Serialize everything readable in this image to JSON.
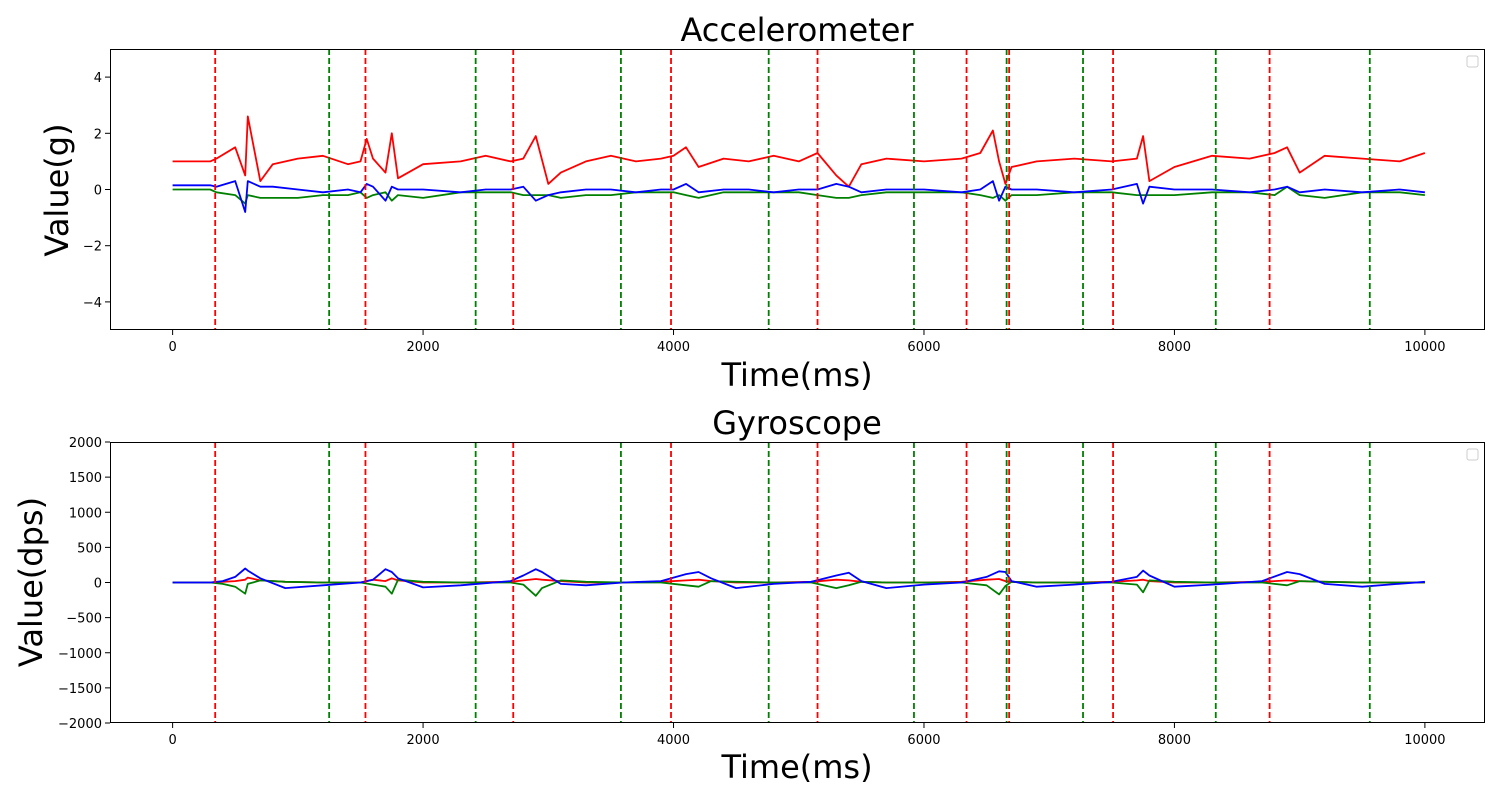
{
  "colors": {
    "x_series": "#ff0000",
    "y_series": "#008000",
    "z_series": "#0000ff",
    "start_marker": "#ff0000",
    "end_marker": "#008000"
  },
  "chart_data": [
    {
      "type": "line",
      "title": "Accelerometer",
      "xlabel": "Time(ms)",
      "ylabel": "Value(g)",
      "xlim": [
        -500,
        10480
      ],
      "ylim": [
        -5,
        5
      ],
      "xticks": [
        0,
        2000,
        4000,
        6000,
        8000,
        10000
      ],
      "xtick_labels": [
        "0",
        "2000",
        "4000",
        "6000",
        "8000",
        "10000"
      ],
      "yticks": [
        -4,
        -2,
        0,
        2,
        4
      ],
      "ytick_labels": [
        "−4",
        "−2",
        "0",
        "2",
        "4"
      ],
      "legend": "top-right (empty)",
      "grid": false,
      "start_markers": [
        340,
        1540,
        2720,
        3980,
        5150,
        6340,
        6680,
        7510,
        8760
      ],
      "end_markers": [
        1250,
        2420,
        3580,
        4760,
        5920,
        6660,
        7270,
        8330,
        9560
      ],
      "x": [
        0,
        300,
        350,
        500,
        580,
        600,
        700,
        800,
        1000,
        1200,
        1400,
        1500,
        1550,
        1600,
        1700,
        1750,
        1800,
        2000,
        2300,
        2500,
        2700,
        2800,
        2900,
        3000,
        3100,
        3300,
        3500,
        3700,
        3900,
        4000,
        4100,
        4200,
        4400,
        4600,
        4800,
        5000,
        5150,
        5300,
        5400,
        5500,
        5700,
        6000,
        6300,
        6450,
        6550,
        6600,
        6650,
        6700,
        6900,
        7200,
        7500,
        7700,
        7750,
        7800,
        8000,
        8300,
        8600,
        8800,
        8900,
        9000,
        9200,
        9500,
        9800,
        10000
      ],
      "series": [
        {
          "values": [
            1.0,
            1.0,
            1.1,
            1.5,
            0.5,
            2.6,
            0.3,
            0.9,
            1.1,
            1.2,
            0.9,
            1.0,
            1.8,
            1.1,
            0.6,
            2.0,
            0.4,
            0.9,
            1.0,
            1.2,
            1.0,
            1.1,
            1.9,
            0.2,
            0.6,
            1.0,
            1.2,
            1.0,
            1.1,
            1.2,
            1.5,
            0.8,
            1.1,
            1.0,
            1.2,
            1.0,
            1.3,
            0.5,
            0.1,
            0.9,
            1.1,
            1.0,
            1.1,
            1.3,
            2.1,
            1.0,
            0.2,
            0.8,
            1.0,
            1.1,
            1.0,
            1.1,
            1.9,
            0.3,
            0.8,
            1.2,
            1.1,
            1.3,
            1.5,
            0.6,
            1.2,
            1.1,
            1.0,
            1.3
          ]
        },
        {
          "values": [
            0.0,
            0.0,
            -0.1,
            -0.2,
            -0.5,
            -0.2,
            -0.3,
            -0.3,
            -0.3,
            -0.2,
            -0.2,
            -0.1,
            -0.3,
            -0.2,
            -0.1,
            -0.4,
            -0.2,
            -0.3,
            -0.1,
            -0.1,
            -0.1,
            -0.2,
            -0.2,
            -0.2,
            -0.3,
            -0.2,
            -0.2,
            -0.1,
            -0.1,
            -0.1,
            -0.2,
            -0.3,
            -0.1,
            -0.1,
            -0.1,
            -0.1,
            -0.2,
            -0.3,
            -0.3,
            -0.2,
            -0.1,
            -0.1,
            -0.1,
            -0.2,
            -0.3,
            -0.2,
            -0.4,
            -0.2,
            -0.2,
            -0.1,
            -0.1,
            -0.2,
            -0.2,
            -0.2,
            -0.2,
            -0.1,
            -0.1,
            -0.2,
            0.1,
            -0.2,
            -0.3,
            -0.1,
            -0.1,
            -0.2
          ]
        },
        {
          "values": [
            0.15,
            0.15,
            0.1,
            0.3,
            -0.8,
            0.3,
            0.1,
            0.1,
            0.0,
            -0.1,
            0.0,
            -0.1,
            0.2,
            0.1,
            -0.4,
            0.1,
            0.0,
            0.0,
            -0.1,
            0.0,
            0.0,
            0.1,
            -0.4,
            -0.2,
            -0.1,
            0.0,
            0.0,
            -0.1,
            0.0,
            0.0,
            0.2,
            -0.1,
            0.0,
            0.0,
            -0.1,
            0.0,
            0.0,
            0.2,
            0.1,
            -0.1,
            0.0,
            0.0,
            -0.1,
            0.0,
            0.3,
            -0.4,
            0.1,
            0.0,
            0.0,
            -0.1,
            0.0,
            0.2,
            -0.5,
            0.1,
            0.0,
            0.0,
            -0.1,
            0.0,
            0.1,
            -0.1,
            0.0,
            -0.1,
            0.0,
            -0.1
          ]
        }
      ]
    },
    {
      "type": "line",
      "title": "Gyroscope",
      "xlabel": "Time(ms)",
      "ylabel": "Value(dps)",
      "xlim": [
        -500,
        10480
      ],
      "ylim": [
        -2000,
        2000
      ],
      "xticks": [
        0,
        2000,
        4000,
        6000,
        8000,
        10000
      ],
      "xtick_labels": [
        "0",
        "2000",
        "4000",
        "6000",
        "8000",
        "10000"
      ],
      "yticks": [
        -2000,
        -1500,
        -1000,
        -500,
        0,
        500,
        1000,
        1500,
        2000
      ],
      "ytick_labels": [
        "−2000",
        "−1500",
        "−1000",
        "−500",
        "0",
        "500",
        "1000",
        "1500",
        "2000"
      ],
      "legend": "top-right (empty)",
      "grid": false,
      "start_markers": [
        340,
        1540,
        2720,
        3980,
        5150,
        6340,
        6680,
        7510,
        8760
      ],
      "end_markers": [
        1250,
        2420,
        3580,
        4760,
        5920,
        6660,
        7270,
        8330,
        9560
      ],
      "x": [
        0,
        300,
        400,
        500,
        580,
        600,
        700,
        900,
        1200,
        1500,
        1600,
        1700,
        1750,
        1800,
        2000,
        2300,
        2700,
        2800,
        2900,
        2950,
        3100,
        3300,
        3600,
        3900,
        4100,
        4200,
        4300,
        4500,
        4800,
        5100,
        5300,
        5400,
        5500,
        5700,
        6000,
        6300,
        6500,
        6600,
        6650,
        6700,
        6900,
        7200,
        7500,
        7700,
        7750,
        7800,
        8000,
        8300,
        8700,
        8900,
        9000,
        9200,
        9500,
        10000
      ],
      "series": [
        {
          "values": [
            0,
            0,
            10,
            20,
            40,
            70,
            30,
            10,
            0,
            0,
            40,
            20,
            60,
            30,
            0,
            0,
            10,
            30,
            50,
            40,
            20,
            0,
            0,
            10,
            30,
            40,
            20,
            0,
            0,
            10,
            40,
            30,
            10,
            0,
            0,
            10,
            40,
            50,
            20,
            10,
            0,
            0,
            10,
            30,
            40,
            20,
            0,
            0,
            10,
            30,
            20,
            10,
            0,
            0
          ]
        },
        {
          "values": [
            0,
            0,
            -20,
            -60,
            -160,
            -20,
            30,
            10,
            0,
            0,
            -30,
            -60,
            -160,
            40,
            10,
            0,
            0,
            -30,
            -190,
            -80,
            30,
            10,
            0,
            0,
            -40,
            -60,
            20,
            10,
            0,
            0,
            -80,
            -40,
            10,
            0,
            0,
            0,
            -40,
            -170,
            -50,
            10,
            0,
            0,
            0,
            -30,
            -140,
            30,
            10,
            0,
            0,
            -40,
            20,
            10,
            0,
            0
          ]
        },
        {
          "values": [
            0,
            0,
            20,
            80,
            200,
            170,
            60,
            -80,
            -40,
            0,
            40,
            190,
            150,
            60,
            -70,
            -40,
            20,
            100,
            190,
            150,
            -20,
            -40,
            0,
            20,
            120,
            150,
            60,
            -80,
            -20,
            10,
            100,
            140,
            20,
            -80,
            -30,
            0,
            80,
            160,
            150,
            20,
            -60,
            -30,
            10,
            80,
            170,
            100,
            -60,
            -30,
            20,
            150,
            120,
            -20,
            -60,
            10
          ]
        }
      ]
    }
  ]
}
